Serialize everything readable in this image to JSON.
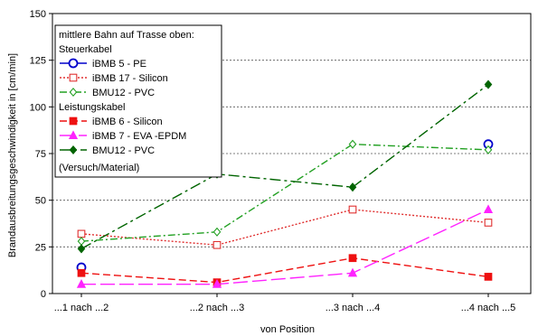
{
  "chart_data": {
    "type": "line",
    "title": "",
    "xlabel": "von Position",
    "ylabel": "Brandausbreitungsgeschwindigkeit in [cm/min]",
    "categories": [
      "...1 nach ...2",
      "...2 nach ...3",
      "...3 nach ...4",
      "...4 nach ...5"
    ],
    "ylim": [
      0,
      150
    ],
    "yticks": [
      0,
      25,
      50,
      75,
      100,
      125,
      150
    ],
    "grid": "horizontal dashed",
    "legend": {
      "placement": "top-left",
      "header": "mittlere Bahn auf Trasse oben:",
      "group1": "Steuerkabel",
      "group2": "Leistungskabel",
      "footer": "(Versuch/Material)"
    },
    "series": [
      {
        "name": "iBMB 5 - PE",
        "group": "Steuerkabel",
        "values": [
          14,
          null,
          null,
          80
        ],
        "color": "#0000cc",
        "dash": "none",
        "marker": "circle-open",
        "connect": false
      },
      {
        "name": "iBMB 17 - Silicon",
        "group": "Steuerkabel",
        "values": [
          32,
          26,
          45,
          38
        ],
        "color": "#e03030",
        "dash": "2,2",
        "marker": "square-open",
        "connect": true
      },
      {
        "name": "BMU12 - PVC",
        "group": "Steuerkabel",
        "values": [
          28,
          33,
          80,
          77
        ],
        "color": "#22a022",
        "dash": "8,3,2,3",
        "marker": "diamond-open",
        "connect": true
      },
      {
        "name": "iBMB 6 - Silicon",
        "group": "Leistungskabel",
        "values": [
          11,
          6,
          19,
          9
        ],
        "color": "#ee1111",
        "dash": "8,4",
        "marker": "square-filled",
        "connect": true
      },
      {
        "name": "iBMB 7 - EVA -EPDM",
        "group": "Leistungskabel",
        "values": [
          5,
          5,
          11,
          45
        ],
        "color": "#ff22ff",
        "dash": "16,5",
        "marker": "triangle-filled",
        "connect": true
      },
      {
        "name": "BMU12 - PVC",
        "group": "Leistungskabel",
        "values": [
          24,
          64,
          57,
          112
        ],
        "color": "#006400",
        "dash": "12,4,3,4",
        "marker": "diamond-filled",
        "connect": true
      }
    ]
  }
}
